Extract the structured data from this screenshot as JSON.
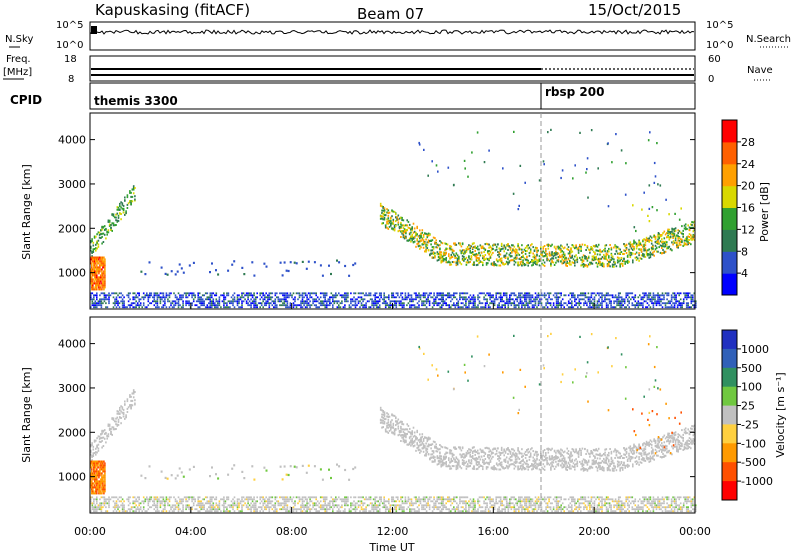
{
  "header": {
    "station": "Kapuskasing (fitACF)",
    "beam": "Beam 07",
    "date": "15/Oct/2015"
  },
  "noise_panel": {
    "left_label": "N.Sky",
    "right_label": "N.Search",
    "left_ticks": [
      "10^5",
      "10^0"
    ],
    "right_ticks": [
      "10^5",
      "10^0"
    ]
  },
  "freq_panel": {
    "left_label_top": "Freq.",
    "left_label_bottom": "[MHz]",
    "right_label": "Nave",
    "left_ticks": [
      "18",
      "8"
    ],
    "right_ticks": [
      "60",
      "0"
    ]
  },
  "cpid_panel": {
    "label": "CPID",
    "segments": [
      {
        "name": "themis 3300",
        "start_hour": 0
      },
      {
        "name": "rbsp 200",
        "start_hour": 18
      }
    ]
  },
  "power_panel": {
    "ylabel": "Slant Range [km]",
    "yticks": [
      "1000",
      "2000",
      "3000",
      "4000"
    ],
    "colorbar_label": "Power [dB]",
    "colorbar_ticks": [
      "4",
      "8",
      "12",
      "16",
      "20",
      "24",
      "28"
    ],
    "colorbar_colors": [
      "#0000ff",
      "#2e51c9",
      "#2f7a52",
      "#30a030",
      "#d8d800",
      "#ffa000",
      "#ff6000",
      "#ff0000"
    ]
  },
  "velocity_panel": {
    "ylabel": "Slant Range [km]",
    "yticks": [
      "1000",
      "2000",
      "3000",
      "4000"
    ],
    "colorbar_label": "Velocity [m s⁻¹]",
    "colorbar_ticks": [
      "1000",
      "500",
      "100",
      "25",
      "-25",
      "-100",
      "-500",
      "-1000"
    ],
    "colorbar_colors": [
      "#2030c0",
      "#3060b8",
      "#309060",
      "#70c840",
      "#c0c0c0",
      "#ffd040",
      "#ff9a00",
      "#ff5000",
      "#ff0000"
    ]
  },
  "xaxis": {
    "label": "Time UT",
    "ticks": [
      "00:00",
      "04:00",
      "08:00",
      "12:00",
      "16:00",
      "20:00",
      "00:00"
    ]
  },
  "chart_data": [
    {
      "type": "heatmap",
      "title": "Power [dB]",
      "xlabel": "Time UT",
      "ylabel": "Slant Range [km]",
      "xlim_hours": [
        0,
        24
      ],
      "ylim": [
        180,
        4600
      ],
      "colorbar_range": [
        0,
        30
      ],
      "features": [
        {
          "name": "near-range ground scatter",
          "t_start": 0,
          "t_end": 24,
          "range_km": [
            200,
            500
          ],
          "power_db": 6
        },
        {
          "name": "early F-region arc",
          "t_start": 0,
          "t_end": 1.8,
          "range_start_km": 1500,
          "range_end_km": 2900,
          "power_db": 14
        },
        {
          "name": "pre-dawn strong echo",
          "t_start": 0,
          "t_end": 0.6,
          "range_km": [
            600,
            1300
          ],
          "power_db": 26
        },
        {
          "name": "main evening band",
          "t_start": 11.5,
          "t_end": 24,
          "range_center_km": [
            2300,
            1400,
            1350,
            1900
          ],
          "power_db": 20
        }
      ]
    },
    {
      "type": "heatmap",
      "title": "Velocity [m s⁻¹]",
      "xlabel": "Time UT",
      "ylabel": "Slant Range [km]",
      "xlim_hours": [
        0,
        24
      ],
      "ylim": [
        180,
        4600
      ],
      "colorbar_range": [
        -1000,
        1000
      ],
      "features": [
        {
          "name": "ground scatter band",
          "t_start": 11.5,
          "t_end": 24,
          "velocity": 0
        },
        {
          "name": "early echoes",
          "t_start": 0,
          "t_end": 0.6,
          "range_km": [
            600,
            1300
          ],
          "velocity": -400
        },
        {
          "name": "late-day receding echoes",
          "t_start": 21.5,
          "t_end": 23.5,
          "range_km": [
            1500,
            2500
          ],
          "velocity": -500
        }
      ]
    }
  ]
}
